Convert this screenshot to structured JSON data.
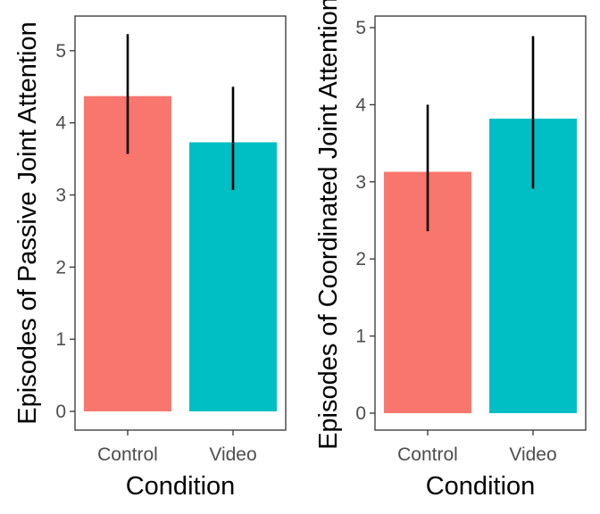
{
  "chart_data": [
    {
      "type": "bar",
      "categories": [
        "Control",
        "Video"
      ],
      "values": [
        4.37,
        3.73
      ],
      "error_bars": [
        {
          "low": 3.57,
          "high": 5.23
        },
        {
          "low": 3.07,
          "high": 4.5
        }
      ],
      "colors": [
        "#F8766D",
        "#00BFC4"
      ],
      "xlabel": "Condition",
      "ylabel": "Episodes of Passive Joint Attention",
      "ylim": [
        -0.26,
        5.48
      ],
      "yticks": [
        0,
        1,
        2,
        3,
        4,
        5
      ],
      "grid": false,
      "legend": "none"
    },
    {
      "type": "bar",
      "categories": [
        "Control",
        "Video"
      ],
      "values": [
        3.13,
        3.82
      ],
      "error_bars": [
        {
          "low": 2.36,
          "high": 4.0
        },
        {
          "low": 2.91,
          "high": 4.89
        }
      ],
      "colors": [
        "#F8766D",
        "#00BFC4"
      ],
      "xlabel": "Condition",
      "ylabel": "Episodes of Coordinated Joint Attention",
      "ylim": [
        -0.22,
        5.15
      ],
      "yticks": [
        0,
        1,
        2,
        3,
        4,
        5
      ],
      "grid": false,
      "legend": "none"
    }
  ]
}
